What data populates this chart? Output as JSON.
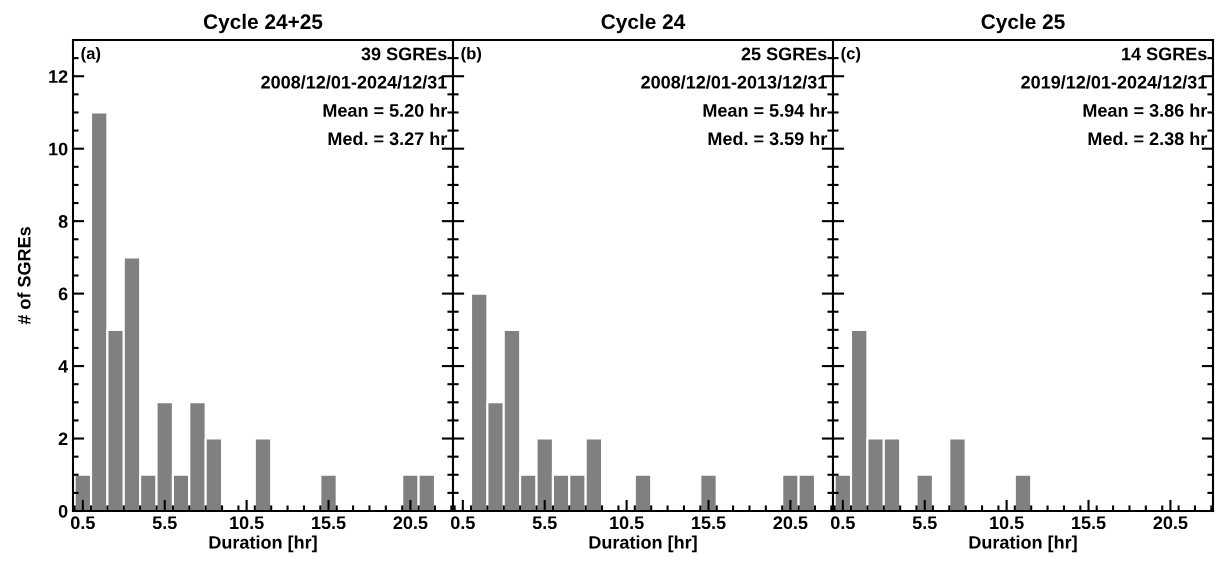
{
  "chart_data": [
    {
      "type": "histogram",
      "title": "Cycle 24+25",
      "xlabel": "Duration [hr]",
      "ylabel": "# of SGREs",
      "color": "#808080",
      "bins": [
        0,
        1,
        2,
        3,
        4,
        5,
        6,
        7,
        8,
        9,
        10,
        11,
        12,
        13,
        14,
        15,
        16,
        17,
        18,
        19,
        20,
        21,
        22
      ],
      "values": [
        1,
        11,
        5,
        7,
        1,
        3,
        1,
        3,
        2,
        0,
        0,
        2,
        0,
        0,
        0,
        1,
        0,
        0,
        0,
        0,
        1,
        1
      ],
      "xlim": [
        -0.1,
        23.1
      ],
      "xticks": [
        0.5,
        5.5,
        10.5,
        15.5,
        20.5
      ],
      "ylim": [
        0,
        13
      ],
      "yticks": [
        0,
        2,
        4,
        6,
        8,
        10,
        12
      ],
      "annotations": [
        "(a)",
        "39 SGREs",
        "2008/12/01-2024/12/31",
        "Mean = 5.20 hr",
        "Med. = 3.27 hr"
      ]
    },
    {
      "type": "histogram",
      "title": "Cycle 24",
      "xlabel": "Duration [hr]",
      "color": "#808080",
      "bins": [
        0,
        1,
        2,
        3,
        4,
        5,
        6,
        7,
        8,
        9,
        10,
        11,
        12,
        13,
        14,
        15,
        16,
        17,
        18,
        19,
        20,
        21,
        22
      ],
      "values": [
        0,
        6,
        3,
        5,
        1,
        2,
        1,
        1,
        2,
        0,
        0,
        1,
        0,
        0,
        0,
        1,
        0,
        0,
        0,
        0,
        1,
        1
      ],
      "xlim": [
        -0.1,
        23.1
      ],
      "xticks": [
        0.5,
        5.5,
        10.5,
        15.5,
        20.5
      ],
      "ylim": [
        0,
        13
      ],
      "yticks": [
        0,
        2,
        4,
        6,
        8,
        10,
        12
      ],
      "tick_labels": "x",
      "annotations": [
        "(b)",
        "25 SGREs",
        "2008/12/01-2013/12/31",
        "Mean = 5.94 hr",
        "Med. = 3.59 hr"
      ]
    },
    {
      "type": "histogram",
      "title": "Cycle 25",
      "xlabel": "Duration [hr]",
      "color": "#808080",
      "bins": [
        0,
        1,
        2,
        3,
        4,
        5,
        6,
        7,
        8,
        9,
        10,
        11,
        12,
        13,
        14,
        15,
        16,
        17,
        18,
        19,
        20,
        21,
        22
      ],
      "values": [
        1,
        5,
        2,
        2,
        0,
        1,
        0,
        2,
        0,
        0,
        0,
        1,
        0,
        0,
        0,
        0,
        0,
        0,
        0,
        0,
        0,
        0
      ],
      "xlim": [
        -0.1,
        23.1
      ],
      "xticks": [
        0.5,
        5.5,
        10.5,
        15.5,
        20.5
      ],
      "ylim": [
        0,
        13
      ],
      "yticks": [
        0,
        2,
        4,
        6,
        8,
        10,
        12
      ],
      "tick_labels": "x",
      "annotations": [
        "(c)",
        "14 SGREs",
        "2019/12/01-2024/12/31",
        "Mean = 3.86 hr",
        "Med. = 2.38 hr"
      ]
    }
  ]
}
